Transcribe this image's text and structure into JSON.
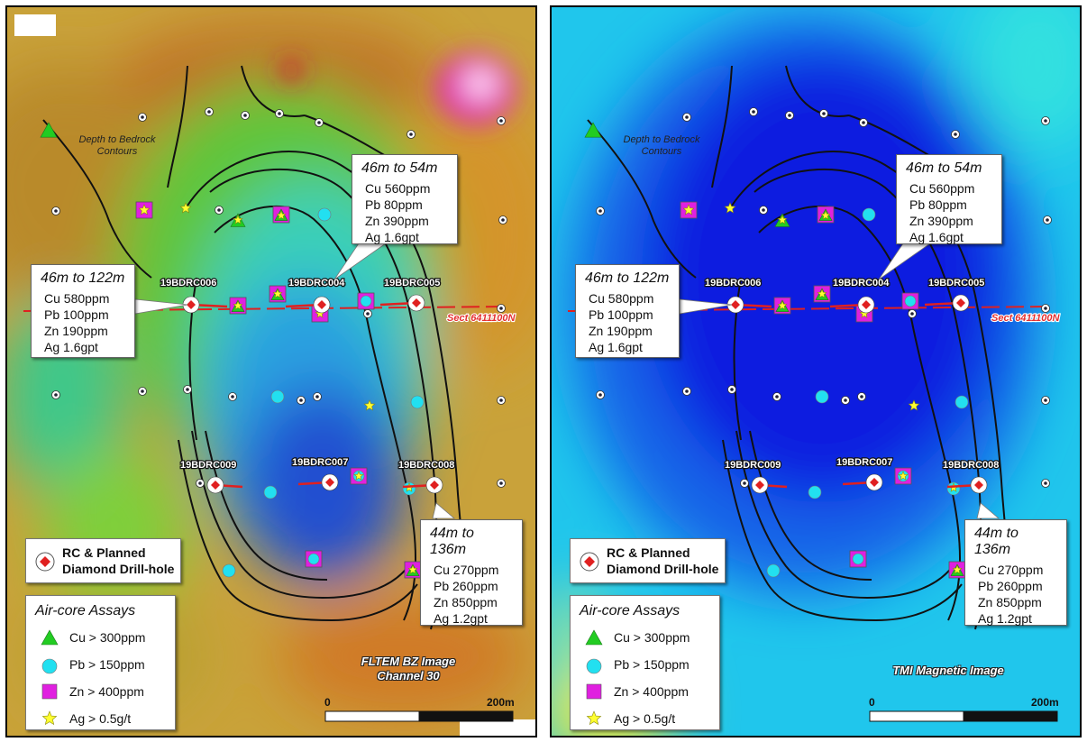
{
  "panels": [
    {
      "image_title": [
        "FLTEM BZ Image",
        "Channel 30"
      ],
      "background": "fltem"
    },
    {
      "image_title": [
        "TMI Magnetic Image"
      ],
      "background": "tmi"
    }
  ],
  "depth_label": [
    "Depth to Bedrock",
    "Contours"
  ],
  "section_label": "Sect 6411100N",
  "drillholes": [
    "19BDRC006",
    "19BDRC004",
    "19BDRC005",
    "19BDRC009",
    "19BDRC007",
    "19BDRC008"
  ],
  "callouts": {
    "c1": {
      "title": "46m to 54m",
      "lines": [
        "Cu 560ppm",
        "Pb 80ppm",
        "Zn 390ppm",
        "Ag 1.6gpt"
      ]
    },
    "c2": {
      "title": "46m to 122m",
      "lines": [
        "Cu 580ppm",
        "Pb 100ppm",
        "Zn 190ppm",
        "Ag 1.6gpt"
      ]
    },
    "c3": {
      "title": "44m to 136m",
      "lines": [
        "Cu 270ppm",
        "Pb 260ppm",
        "Zn 850ppm",
        "Ag 1.2gpt"
      ]
    }
  },
  "legend_rc": [
    "RC & Planned",
    "Diamond Drill-hole"
  ],
  "legend_air": {
    "title": "Air-core Assays",
    "items": [
      "Cu > 300ppm",
      "Pb > 150ppm",
      "Zn > 400ppm",
      "Ag > 0.5g/t"
    ]
  },
  "scale": {
    "start": "0",
    "end": "200m"
  },
  "colors": {
    "cu": "#22cc22",
    "pb": "#22e0f0",
    "zn": "#e020e0",
    "ag": "#ffff30",
    "section": "#e02020"
  }
}
